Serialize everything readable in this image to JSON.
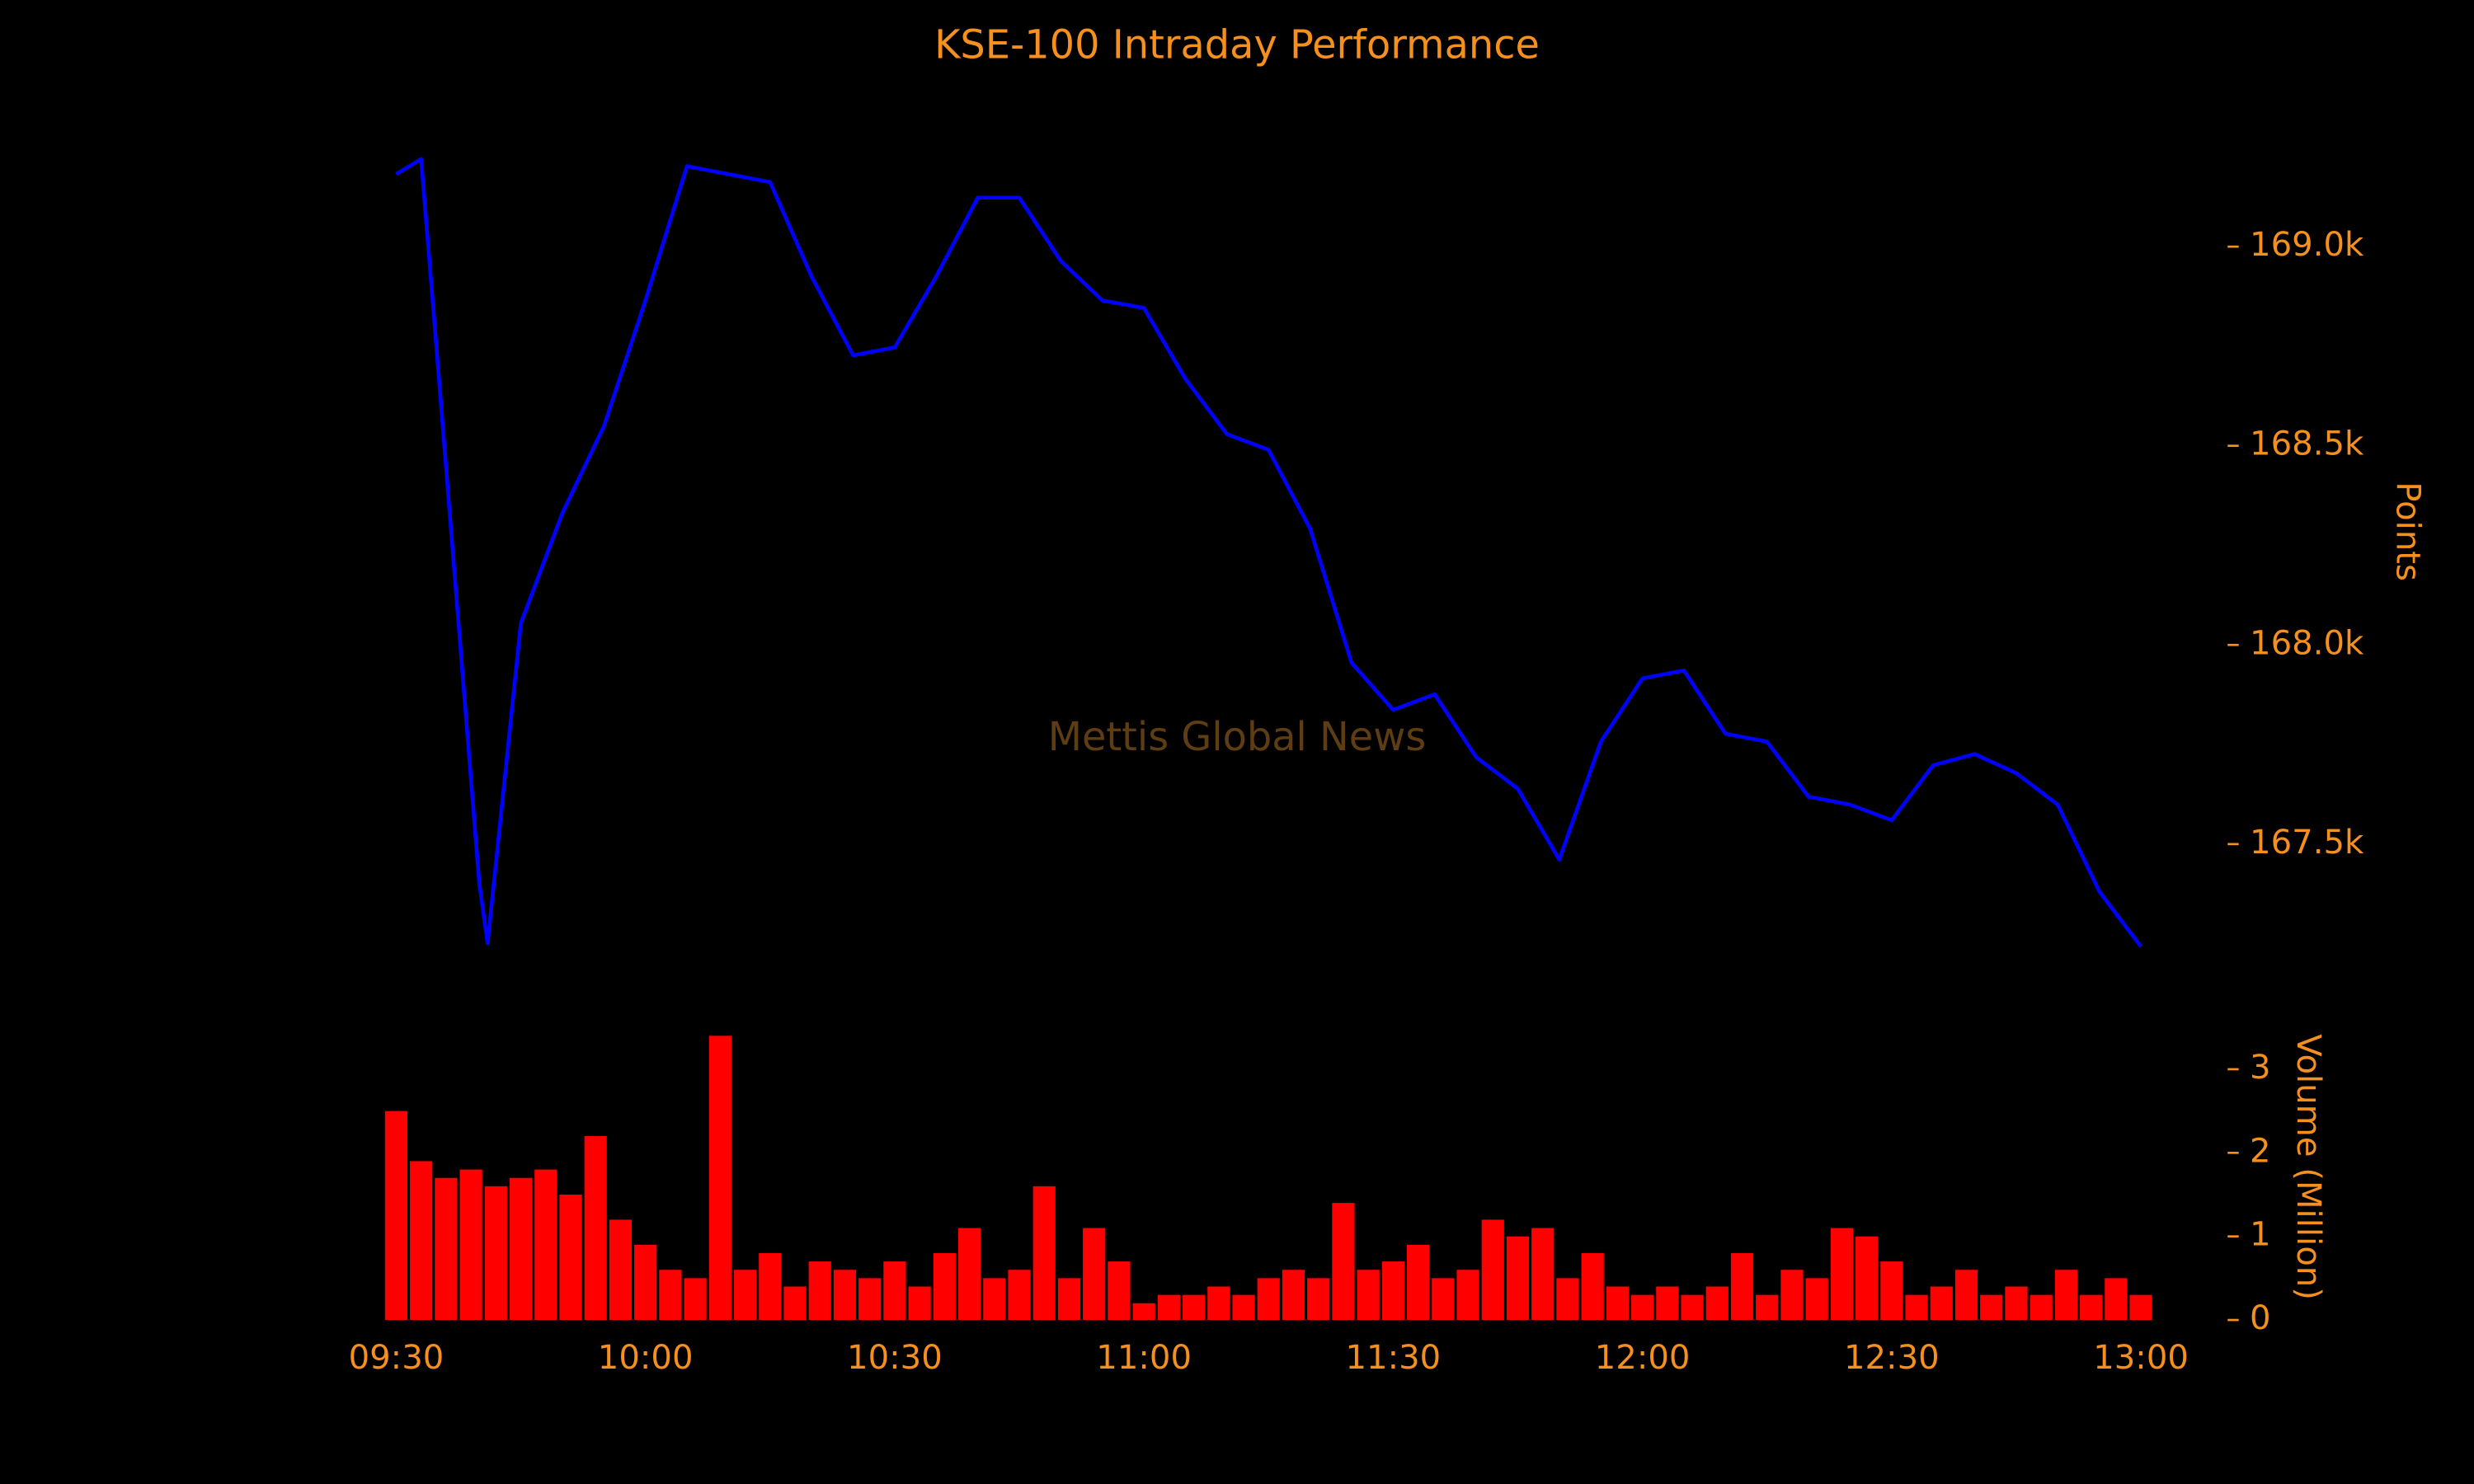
{
  "chart_data": [
    {
      "type": "line",
      "title": "KSE-100 Intraday Performance",
      "ylabel": "Points",
      "watermark": "Mettis Global News",
      "x": [
        "09:30",
        "09:33",
        "09:35",
        "09:40",
        "09:41",
        "09:45",
        "09:50",
        "09:55",
        "10:00",
        "10:05",
        "10:10",
        "10:15",
        "10:20",
        "10:25",
        "10:30",
        "10:35",
        "10:40",
        "10:45",
        "10:50",
        "10:55",
        "11:00",
        "11:05",
        "11:10",
        "11:15",
        "11:20",
        "11:25",
        "11:30",
        "11:35",
        "11:40",
        "11:45",
        "11:50",
        "11:55",
        "12:00",
        "12:05",
        "12:10",
        "12:15",
        "12:20",
        "12:25",
        "12:30",
        "12:35",
        "12:40",
        "12:45",
        "12:50",
        "12:55",
        "13:00"
      ],
      "series": [
        {
          "name": "KSE-100",
          "color": "#0000ff",
          "values": [
            169182,
            169220,
            168707,
            167401,
            167251,
            168054,
            168331,
            168549,
            168865,
            169202,
            169182,
            169162,
            168925,
            168727,
            168747,
            168925,
            169123,
            169123,
            168964,
            168865,
            168846,
            168668,
            168529,
            168490,
            168292,
            167955,
            167837,
            167876,
            167718,
            167639,
            167461,
            167757,
            167916,
            167936,
            167777,
            167757,
            167619,
            167599,
            167560,
            167698,
            167726,
            167678,
            167599,
            167381,
            167243
          ]
        }
      ],
      "xlim": [
        "09:30",
        "13:00"
      ],
      "ylim": [
        167200,
        169350
      ],
      "yticks": [
        {
          "value": 167500,
          "label": "167.5k"
        },
        {
          "value": 168000,
          "label": "168.0k"
        },
        {
          "value": 168500,
          "label": "168.5k"
        },
        {
          "value": 169000,
          "label": "169.0k"
        }
      ]
    },
    {
      "type": "bar",
      "ylabel": "Volume (Million)",
      "x": [
        "09:30",
        "09:33",
        "09:36",
        "09:39",
        "09:42",
        "09:45",
        "09:48",
        "09:51",
        "09:54",
        "09:57",
        "10:00",
        "10:03",
        "10:06",
        "10:09",
        "10:12",
        "10:15",
        "10:18",
        "10:21",
        "10:24",
        "10:27",
        "10:30",
        "10:33",
        "10:36",
        "10:39",
        "10:42",
        "10:45",
        "10:48",
        "10:51",
        "10:54",
        "10:57",
        "11:00",
        "11:03",
        "11:06",
        "11:09",
        "11:12",
        "11:15",
        "11:18",
        "11:21",
        "11:24",
        "11:27",
        "11:30",
        "11:33",
        "11:36",
        "11:39",
        "11:42",
        "11:45",
        "11:48",
        "11:51",
        "11:54",
        "11:57",
        "12:00",
        "12:03",
        "12:06",
        "12:09",
        "12:12",
        "12:15",
        "12:18",
        "12:21",
        "12:24",
        "12:27",
        "12:30",
        "12:33",
        "12:36",
        "12:39",
        "12:42",
        "12:45",
        "12:48",
        "12:51",
        "12:54",
        "12:57",
        "13:00"
      ],
      "series": [
        {
          "name": "Volume",
          "color": "#ff0000",
          "values": [
            2.5,
            1.9,
            1.7,
            1.8,
            1.6,
            1.7,
            1.8,
            1.5,
            2.2,
            1.2,
            0.9,
            0.6,
            0.5,
            3.4,
            0.6,
            0.8,
            0.4,
            0.7,
            0.6,
            0.5,
            0.7,
            0.4,
            0.8,
            1.1,
            0.5,
            0.6,
            1.6,
            0.5,
            1.1,
            0.7,
            0.2,
            0.3,
            0.3,
            0.4,
            0.3,
            0.5,
            0.6,
            0.5,
            1.4,
            0.6,
            0.7,
            0.9,
            0.5,
            0.6,
            1.2,
            1.0,
            1.1,
            0.5,
            0.8,
            0.4,
            0.3,
            0.4,
            0.3,
            0.4,
            0.8,
            0.3,
            0.6,
            0.5,
            1.1,
            1.0,
            0.7,
            0.3,
            0.4,
            0.6,
            0.3,
            0.4,
            0.3,
            0.6,
            0.3,
            0.5,
            0.3
          ]
        }
      ],
      "xlim": [
        "09:30",
        "13:00"
      ],
      "xticks": [
        "09:30",
        "10:00",
        "10:30",
        "11:00",
        "11:30",
        "12:00",
        "12:30",
        "13:00"
      ],
      "ylim": [
        0,
        3.5
      ],
      "yticks": [
        0,
        1,
        2,
        3
      ]
    }
  ]
}
